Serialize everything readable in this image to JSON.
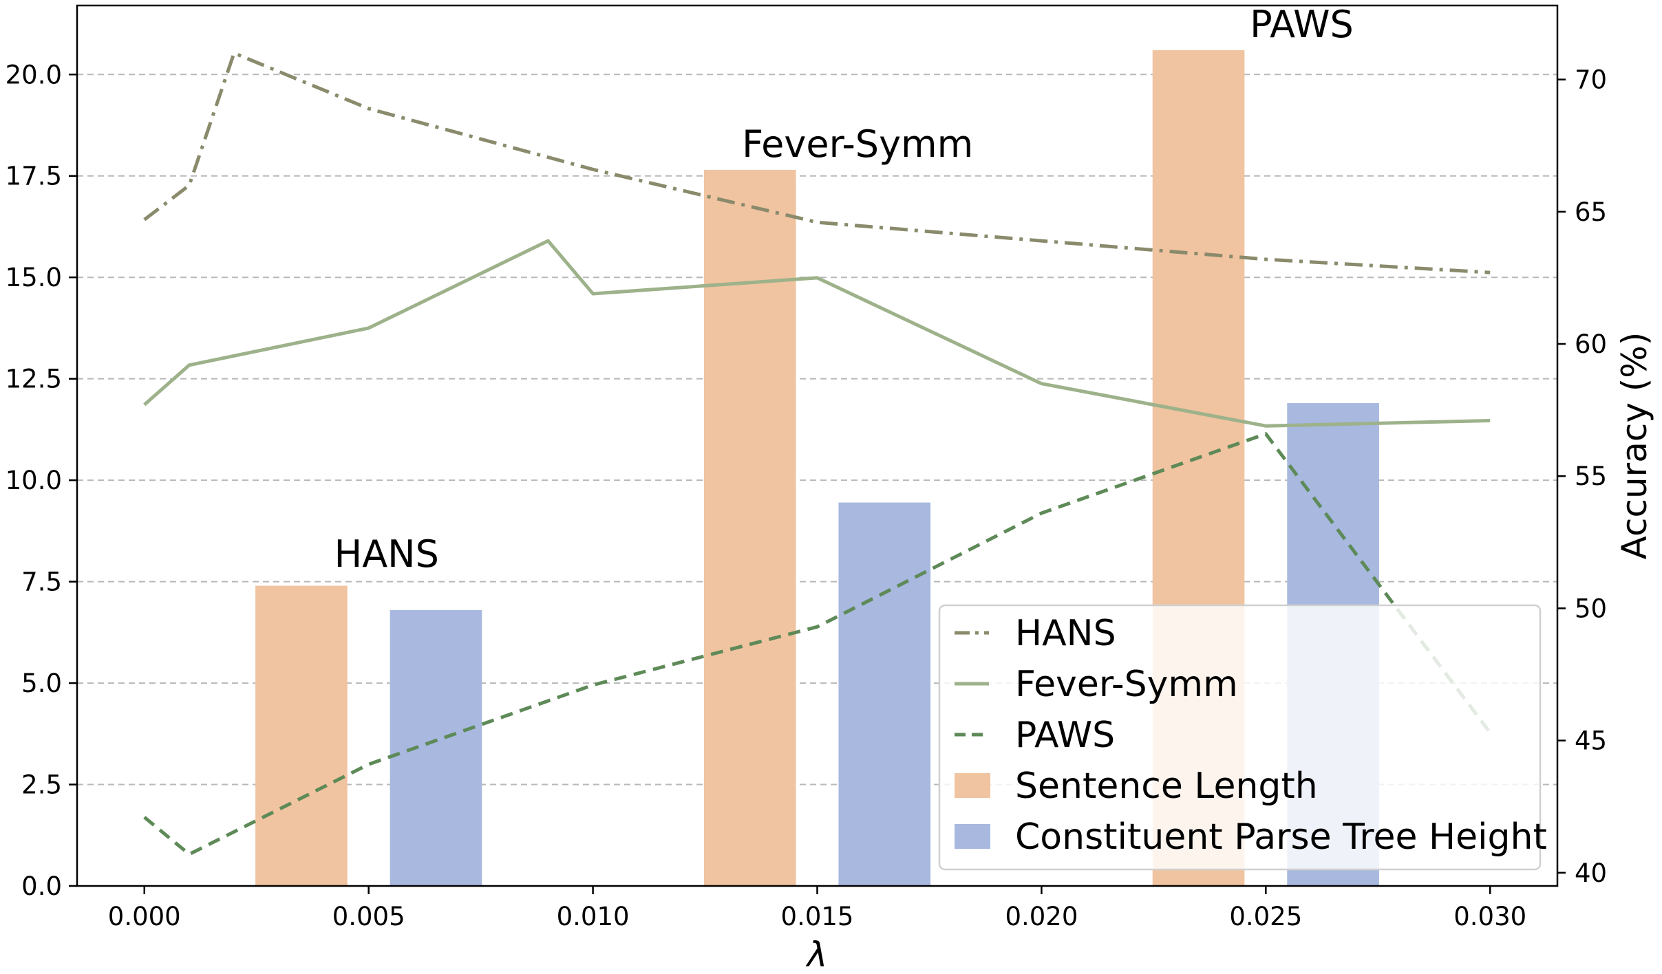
{
  "chart_data": {
    "type": "bar+line",
    "xlabel": "λ",
    "ylabel_left": "",
    "ylabel_right": "Accuracy (%)",
    "xlim": [
      -0.0015,
      0.0315
    ],
    "ylim_left": [
      0,
      21.7
    ],
    "ylim_right": [
      39.5,
      72.8
    ],
    "x_ticks": [
      0.0,
      0.005,
      0.01,
      0.015,
      0.02,
      0.025,
      0.03
    ],
    "x_tick_labels": [
      "0.000",
      "0.005",
      "0.010",
      "0.015",
      "0.020",
      "0.025",
      "0.030"
    ],
    "y_left_ticks": [
      0.0,
      2.5,
      5.0,
      7.5,
      10.0,
      12.5,
      15.0,
      17.5,
      20.0
    ],
    "y_left_tick_labels": [
      "0.0",
      "2.5",
      "5.0",
      "7.5",
      "10.0",
      "12.5",
      "15.0",
      "17.5",
      "20.0"
    ],
    "y_right_ticks": [
      40,
      45,
      50,
      55,
      60,
      65,
      70
    ],
    "y_right_tick_labels": [
      "40",
      "45",
      "50",
      "55",
      "60",
      "65",
      "70"
    ],
    "grid": "horizontal dashed",
    "legend_position": "lower-right",
    "bar_groups": [
      {
        "label": "HANS",
        "center": 0.005,
        "sentence_length": 7.4,
        "parse_tree_height": 6.8
      },
      {
        "label": "Fever-Symm",
        "center": 0.015,
        "sentence_length": 17.65,
        "parse_tree_height": 9.45
      },
      {
        "label": "PAWS",
        "center": 0.025,
        "sentence_length": 20.6,
        "parse_tree_height": 11.9
      }
    ],
    "bar_series": [
      {
        "name": "Sentence Length",
        "color": "#f0c4a0"
      },
      {
        "name": "Constituent Parse Tree Height",
        "color": "#a8b8df"
      }
    ],
    "line_series": [
      {
        "name": "HANS",
        "color": "#8a8a6c",
        "style": "dashdot",
        "x": [
          0.0,
          0.001,
          0.002,
          0.005,
          0.01,
          0.015,
          0.02,
          0.025,
          0.03
        ],
        "y": [
          64.7,
          66.0,
          71.0,
          68.9,
          66.6,
          64.6,
          63.9,
          63.2,
          62.7
        ]
      },
      {
        "name": "Fever-Symm",
        "color": "#9db28a",
        "style": "solid",
        "x": [
          0.0,
          0.001,
          0.005,
          0.009,
          0.01,
          0.015,
          0.02,
          0.025,
          0.03
        ],
        "y": [
          57.7,
          59.2,
          60.6,
          63.9,
          61.9,
          62.5,
          58.5,
          56.9,
          57.1
        ]
      },
      {
        "name": "PAWS",
        "color": "#5e8a58",
        "style": "dashed",
        "x": [
          0.0,
          0.001,
          0.005,
          0.01,
          0.015,
          0.02,
          0.025,
          0.03
        ],
        "y": [
          42.1,
          40.7,
          44.1,
          47.1,
          49.3,
          53.6,
          56.6,
          45.3
        ]
      }
    ]
  }
}
